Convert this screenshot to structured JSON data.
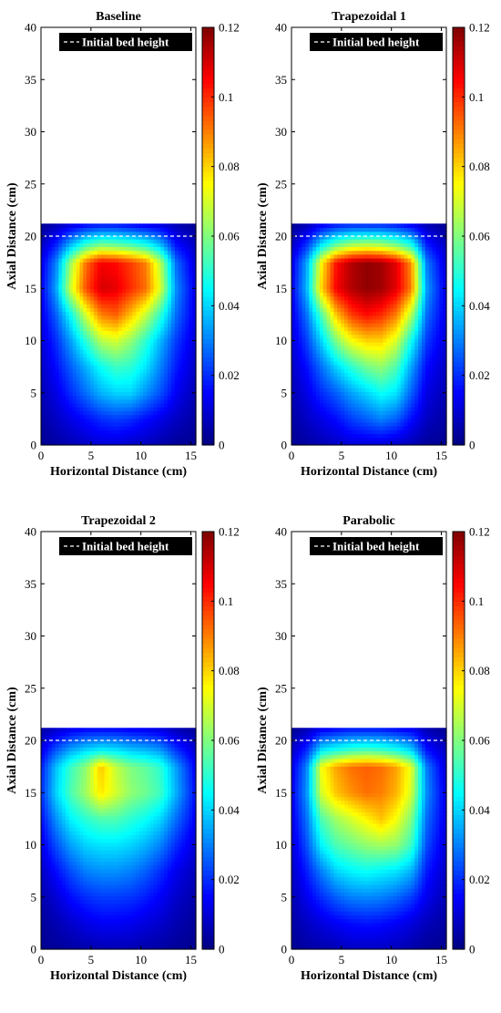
{
  "chart_data": [
    {
      "type": "heatmap",
      "title": "Baseline",
      "xlabel": "Horizontal Distance (cm)",
      "ylabel": "Axial Distance (cm)",
      "xlim": [
        0,
        15.5
      ],
      "ylim": [
        0,
        40
      ],
      "xticks": [
        "0",
        "5",
        "10",
        "15"
      ],
      "yticks": [
        "0",
        "5",
        "10",
        "15",
        "20",
        "25",
        "30",
        "35",
        "40"
      ],
      "colorbar": {
        "min": 0,
        "max": 0.12,
        "ticks": [
          "0",
          "0.02",
          "0.04",
          "0.06",
          "0.08",
          "0.1",
          "0.12"
        ]
      },
      "bed_top": 21.2,
      "initial_bed_height": {
        "label": "Initial bed height",
        "value": 20
      },
      "legend_position": "top",
      "x": [
        0,
        1.5,
        3,
        4.5,
        6,
        7.5,
        9,
        10.5,
        12,
        13.5,
        15.5
      ],
      "y": [
        0,
        2.5,
        5,
        7.5,
        10,
        12.5,
        15,
        17.5,
        19,
        21.2
      ],
      "z": [
        [
          0.002,
          0.004,
          0.006,
          0.008,
          0.01,
          0.01,
          0.008,
          0.007,
          0.005,
          0.003,
          0.002
        ],
        [
          0.004,
          0.008,
          0.012,
          0.016,
          0.02,
          0.022,
          0.02,
          0.016,
          0.012,
          0.008,
          0.004
        ],
        [
          0.006,
          0.012,
          0.02,
          0.028,
          0.036,
          0.04,
          0.04,
          0.032,
          0.024,
          0.014,
          0.006
        ],
        [
          0.008,
          0.016,
          0.026,
          0.036,
          0.046,
          0.052,
          0.05,
          0.042,
          0.03,
          0.018,
          0.008
        ],
        [
          0.01,
          0.02,
          0.034,
          0.05,
          0.066,
          0.07,
          0.062,
          0.05,
          0.036,
          0.022,
          0.01
        ],
        [
          0.012,
          0.026,
          0.046,
          0.07,
          0.09,
          0.094,
          0.082,
          0.068,
          0.05,
          0.028,
          0.012
        ],
        [
          0.014,
          0.034,
          0.07,
          0.096,
          0.11,
          0.108,
          0.1,
          0.092,
          0.07,
          0.032,
          0.012
        ],
        [
          0.012,
          0.03,
          0.064,
          0.092,
          0.106,
          0.104,
          0.098,
          0.09,
          0.066,
          0.028,
          0.01
        ],
        [
          0.008,
          0.02,
          0.04,
          0.056,
          0.064,
          0.062,
          0.058,
          0.052,
          0.04,
          0.018,
          0.008
        ],
        [
          0.002,
          0.006,
          0.01,
          0.014,
          0.016,
          0.016,
          0.014,
          0.012,
          0.01,
          0.006,
          0.002
        ]
      ]
    },
    {
      "type": "heatmap",
      "title": "Trapezoidal 1",
      "xlabel": "Horizontal Distance (cm)",
      "ylabel": "Axial Distance (cm)",
      "xlim": [
        0,
        15.5
      ],
      "ylim": [
        0,
        40
      ],
      "xticks": [
        "0",
        "5",
        "10",
        "15"
      ],
      "yticks": [
        "0",
        "5",
        "10",
        "15",
        "20",
        "25",
        "30",
        "35",
        "40"
      ],
      "colorbar": {
        "min": 0,
        "max": 0.12,
        "ticks": [
          "0",
          "0.02",
          "0.04",
          "0.06",
          "0.08",
          "0.1",
          "0.12"
        ]
      },
      "bed_top": 21.2,
      "initial_bed_height": {
        "label": "Initial bed height",
        "value": 20
      },
      "legend_position": "top",
      "x": [
        0,
        1.5,
        3,
        4.5,
        6,
        7.5,
        9,
        10.5,
        12,
        13.5,
        15.5
      ],
      "y": [
        0,
        2.5,
        5,
        7.5,
        10,
        12.5,
        15,
        17.5,
        19,
        21.2
      ],
      "z": [
        [
          0.002,
          0.004,
          0.006,
          0.008,
          0.01,
          0.01,
          0.01,
          0.008,
          0.006,
          0.003,
          0.002
        ],
        [
          0.004,
          0.008,
          0.012,
          0.016,
          0.022,
          0.026,
          0.03,
          0.026,
          0.016,
          0.008,
          0.004
        ],
        [
          0.006,
          0.012,
          0.02,
          0.026,
          0.034,
          0.04,
          0.046,
          0.042,
          0.026,
          0.012,
          0.006
        ],
        [
          0.008,
          0.016,
          0.028,
          0.04,
          0.05,
          0.058,
          0.062,
          0.054,
          0.034,
          0.016,
          0.008
        ],
        [
          0.01,
          0.022,
          0.04,
          0.06,
          0.074,
          0.08,
          0.08,
          0.07,
          0.046,
          0.022,
          0.01
        ],
        [
          0.012,
          0.028,
          0.054,
          0.082,
          0.098,
          0.104,
          0.1,
          0.09,
          0.066,
          0.028,
          0.012
        ],
        [
          0.014,
          0.036,
          0.08,
          0.106,
          0.114,
          0.118,
          0.116,
          0.108,
          0.09,
          0.034,
          0.012
        ],
        [
          0.012,
          0.034,
          0.076,
          0.104,
          0.114,
          0.118,
          0.116,
          0.108,
          0.088,
          0.03,
          0.01
        ],
        [
          0.008,
          0.022,
          0.046,
          0.062,
          0.07,
          0.072,
          0.07,
          0.064,
          0.052,
          0.02,
          0.008
        ],
        [
          0.002,
          0.006,
          0.012,
          0.016,
          0.018,
          0.018,
          0.018,
          0.016,
          0.012,
          0.006,
          0.002
        ]
      ]
    },
    {
      "type": "heatmap",
      "title": "Trapezoidal 2",
      "xlabel": "Horizontal Distance (cm)",
      "ylabel": "Axial Distance (cm)",
      "xlim": [
        0,
        15.5
      ],
      "ylim": [
        0,
        40
      ],
      "xticks": [
        "0",
        "5",
        "10",
        "15"
      ],
      "yticks": [
        "0",
        "5",
        "10",
        "15",
        "20",
        "25",
        "30",
        "35",
        "40"
      ],
      "colorbar": {
        "min": 0,
        "max": 0.12,
        "ticks": [
          "0",
          "0.02",
          "0.04",
          "0.06",
          "0.08",
          "0.1",
          "0.12"
        ]
      },
      "bed_top": 21.2,
      "initial_bed_height": {
        "label": "Initial bed height",
        "value": 20
      },
      "legend_position": "top",
      "x": [
        0,
        1.5,
        3,
        4.5,
        6,
        7.5,
        9,
        10.5,
        12,
        13.5,
        15.5
      ],
      "y": [
        0,
        2.5,
        5,
        7.5,
        10,
        12.5,
        15,
        17.5,
        19,
        21.2
      ],
      "z": [
        [
          0.002,
          0.003,
          0.004,
          0.005,
          0.006,
          0.006,
          0.006,
          0.005,
          0.004,
          0.003,
          0.002
        ],
        [
          0.003,
          0.006,
          0.009,
          0.012,
          0.014,
          0.014,
          0.013,
          0.011,
          0.009,
          0.006,
          0.003
        ],
        [
          0.005,
          0.01,
          0.016,
          0.02,
          0.022,
          0.022,
          0.021,
          0.018,
          0.014,
          0.009,
          0.005
        ],
        [
          0.008,
          0.016,
          0.024,
          0.03,
          0.032,
          0.032,
          0.03,
          0.026,
          0.02,
          0.013,
          0.007
        ],
        [
          0.012,
          0.024,
          0.034,
          0.04,
          0.042,
          0.042,
          0.04,
          0.036,
          0.03,
          0.02,
          0.01
        ],
        [
          0.016,
          0.032,
          0.044,
          0.05,
          0.054,
          0.054,
          0.05,
          0.046,
          0.04,
          0.028,
          0.014
        ],
        [
          0.02,
          0.04,
          0.054,
          0.064,
          0.078,
          0.07,
          0.062,
          0.058,
          0.052,
          0.036,
          0.016
        ],
        [
          0.018,
          0.038,
          0.052,
          0.062,
          0.082,
          0.068,
          0.06,
          0.056,
          0.05,
          0.034,
          0.014
        ],
        [
          0.012,
          0.026,
          0.036,
          0.042,
          0.046,
          0.044,
          0.04,
          0.038,
          0.034,
          0.022,
          0.01
        ],
        [
          0.004,
          0.008,
          0.012,
          0.014,
          0.014,
          0.014,
          0.013,
          0.012,
          0.01,
          0.006,
          0.003
        ]
      ]
    },
    {
      "type": "heatmap",
      "title": "Parabolic",
      "xlabel": "Horizontal Distance (cm)",
      "ylabel": "Axial Distance (cm)",
      "xlim": [
        0,
        15.5
      ],
      "ylim": [
        0,
        40
      ],
      "xticks": [
        "0",
        "5",
        "10",
        "15"
      ],
      "yticks": [
        "0",
        "5",
        "10",
        "15",
        "20",
        "25",
        "30",
        "35",
        "40"
      ],
      "colorbar": {
        "min": 0,
        "max": 0.12,
        "ticks": [
          "0",
          "0.02",
          "0.04",
          "0.06",
          "0.08",
          "0.1",
          "0.12"
        ]
      },
      "bed_top": 21.2,
      "initial_bed_height": {
        "label": "Initial bed height",
        "value": 20
      },
      "legend_position": "top",
      "x": [
        0,
        1.5,
        3,
        4.5,
        6,
        7.5,
        9,
        10.5,
        12,
        13.5,
        15.5
      ],
      "y": [
        0,
        2.5,
        5,
        7.5,
        10,
        12.5,
        15,
        17.5,
        19,
        21.2
      ],
      "z": [
        [
          0.002,
          0.004,
          0.005,
          0.006,
          0.008,
          0.008,
          0.008,
          0.007,
          0.005,
          0.003,
          0.002
        ],
        [
          0.004,
          0.008,
          0.011,
          0.014,
          0.016,
          0.017,
          0.016,
          0.014,
          0.011,
          0.007,
          0.004
        ],
        [
          0.006,
          0.013,
          0.02,
          0.026,
          0.03,
          0.031,
          0.03,
          0.027,
          0.022,
          0.013,
          0.006
        ],
        [
          0.008,
          0.018,
          0.03,
          0.04,
          0.044,
          0.046,
          0.044,
          0.042,
          0.036,
          0.018,
          0.008
        ],
        [
          0.01,
          0.024,
          0.044,
          0.054,
          0.058,
          0.062,
          0.064,
          0.062,
          0.052,
          0.024,
          0.01
        ],
        [
          0.012,
          0.028,
          0.054,
          0.064,
          0.07,
          0.076,
          0.082,
          0.074,
          0.06,
          0.028,
          0.012
        ],
        [
          0.014,
          0.032,
          0.07,
          0.082,
          0.088,
          0.092,
          0.09,
          0.084,
          0.07,
          0.032,
          0.012
        ],
        [
          0.012,
          0.03,
          0.074,
          0.086,
          0.092,
          0.094,
          0.092,
          0.086,
          0.072,
          0.03,
          0.01
        ],
        [
          0.008,
          0.02,
          0.044,
          0.05,
          0.054,
          0.056,
          0.054,
          0.05,
          0.042,
          0.018,
          0.008
        ],
        [
          0.002,
          0.006,
          0.012,
          0.014,
          0.016,
          0.016,
          0.016,
          0.014,
          0.012,
          0.006,
          0.002
        ]
      ]
    }
  ]
}
